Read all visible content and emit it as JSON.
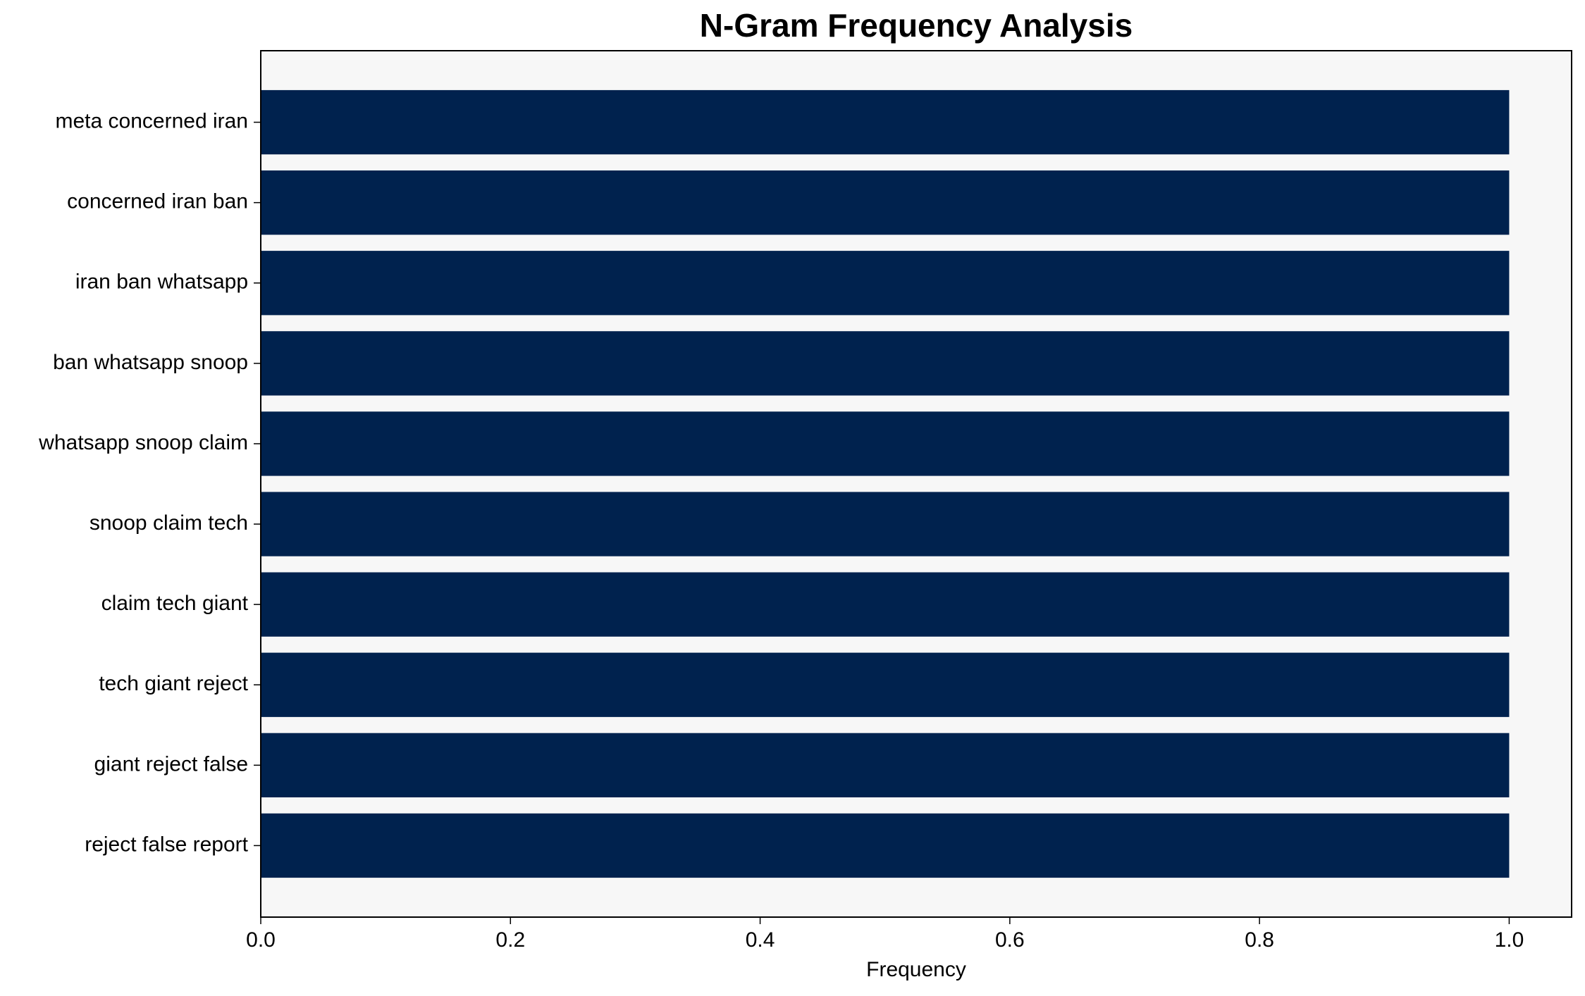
{
  "chart_data": {
    "type": "barh",
    "title": "N-Gram Frequency Analysis",
    "x_label": "Frequency",
    "categories": [
      "meta concerned iran",
      "concerned iran ban",
      "iran ban whatsapp",
      "ban whatsapp snoop",
      "whatsapp snoop claim",
      "snoop claim tech",
      "claim tech giant",
      "tech giant reject",
      "giant reject false",
      "reject false report"
    ],
    "values": [
      1,
      1,
      1,
      1,
      1,
      1,
      1,
      1,
      1,
      1
    ],
    "color": "#00224e",
    "xlim": [
      0,
      1.05
    ],
    "xticks": [
      {
        "value": 0,
        "label": "0.0"
      },
      0.2,
      0.4,
      0.6,
      0.8,
      {
        "value": 1,
        "label": "1.0"
      }
    ],
    "grid": false
  }
}
